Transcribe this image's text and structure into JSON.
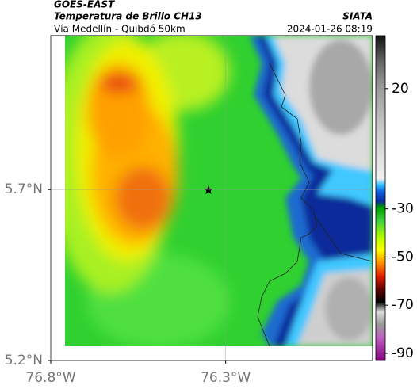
{
  "header": {
    "source": "GOES-EAST",
    "product": "Temperatura de Brillo CH13",
    "agency": "SIATA",
    "region": "Vía Medellín - Quibdó 50km",
    "datetime": "2024-01-26 08:19"
  },
  "map": {
    "xlim": [
      -76.8,
      -75.88
    ],
    "ylim": [
      5.2,
      6.15
    ],
    "xticks": [
      {
        "value": -76.8,
        "label": "76.8°W"
      },
      {
        "value": -76.3,
        "label": "76.3°W"
      }
    ],
    "yticks": [
      {
        "value": 5.7,
        "label": "5.7°N"
      },
      {
        "value": 5.2,
        "label": "5.2°N"
      }
    ]
  },
  "colorbar": {
    "lim": [
      -93,
      42
    ],
    "ticks": [
      20,
      -30,
      -50,
      -70,
      -90
    ]
  }
}
